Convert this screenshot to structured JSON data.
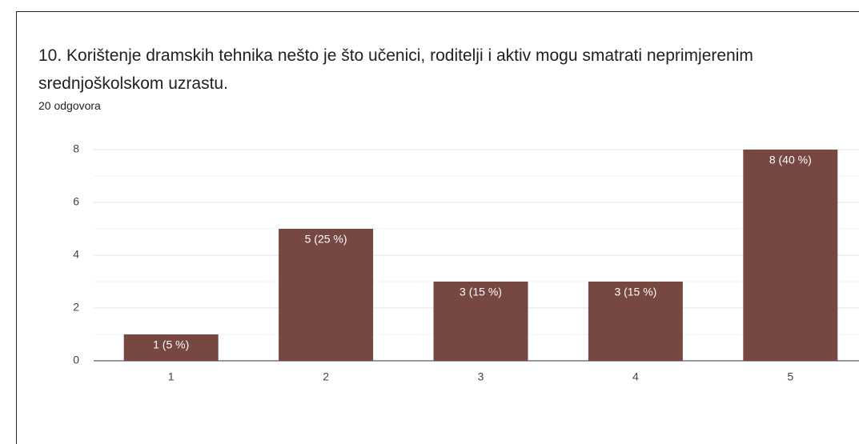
{
  "chart_data": {
    "type": "bar",
    "title": "10. Korištenje dramskih tehnika nešto je što učenici, roditelji i aktiv mogu smatrati neprimjerenim srednjoškolskom uzrastu.",
    "subtitle": "20 odgovora",
    "categories": [
      "1",
      "2",
      "3",
      "4",
      "5"
    ],
    "values": [
      1,
      5,
      3,
      3,
      8
    ],
    "value_labels": [
      "1 (5 %)",
      "5 (25 %)",
      "3 (15 %)",
      "3 (15 %)",
      "8 (40 %)"
    ],
    "color": "#774741",
    "ylim": [
      0,
      8
    ],
    "yticks": [
      0,
      2,
      4,
      6,
      8
    ],
    "minor_yticks": [
      1,
      3,
      5,
      7
    ],
    "grid": true
  }
}
